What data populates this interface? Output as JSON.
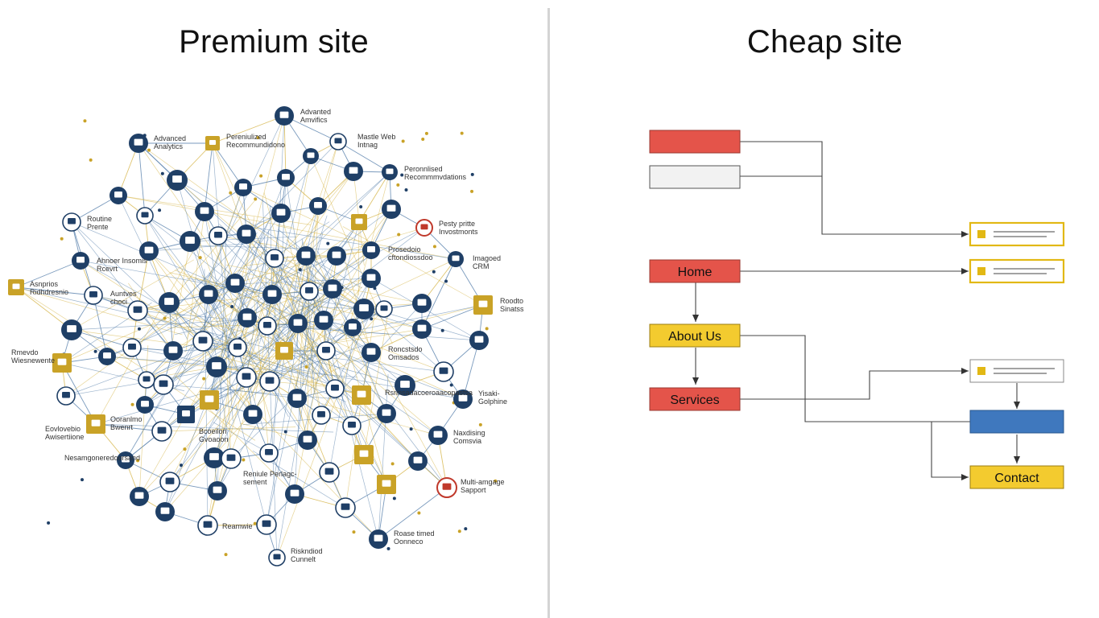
{
  "left_panel": {
    "title": "Premium site",
    "labels": [
      "Advanted Amvifics",
      "Advanced Analytics",
      "Pereniulized Recommundidono",
      "Mastle Web Intnag",
      "Peronnlised Recommmvdations",
      "Routine Prente",
      "Pesty pritte Invostmonts",
      "Ahnoer Insomis Rcevrt",
      "Prosedoio cftondiossdoo",
      "Imagoed CRM",
      "Asnprios Ridhdresnio",
      "Auntves choci",
      "Roodto Sinatss",
      "Rmevdo Wiesnewente",
      "Roncstsdo Omsados",
      "Yisaki- Golphine",
      "Rsrinsadacoeroaacopastsa",
      "Eovlovebio Awisertiione",
      "Ooranlmo Bwenrt",
      "Bcoeilon Gvoaoon",
      "Naxdising Comsvia",
      "Nesamgoneredoorsand",
      "Reniule Perlagc- sement",
      "Multi-amgage Sapport",
      "Reamwie",
      "Roase timed Oonneco",
      "Riskndiod Cunnelt"
    ],
    "colors": {
      "navy": "#1f3f66",
      "gold": "#c9a227",
      "red": "#c0392b",
      "blue_line": "#4e79a7",
      "gold_line": "#d4b13f"
    }
  },
  "right_panel": {
    "title": "Cheap site",
    "boxes": {
      "home": "Home",
      "about": "About Us",
      "services": "Services",
      "contact": "Contact"
    },
    "colors": {
      "red": "#e4544a",
      "yellow": "#f3cb2f",
      "blue": "#3f78be",
      "grey_box": "#f2f2f2",
      "arrow": "#333333"
    }
  }
}
